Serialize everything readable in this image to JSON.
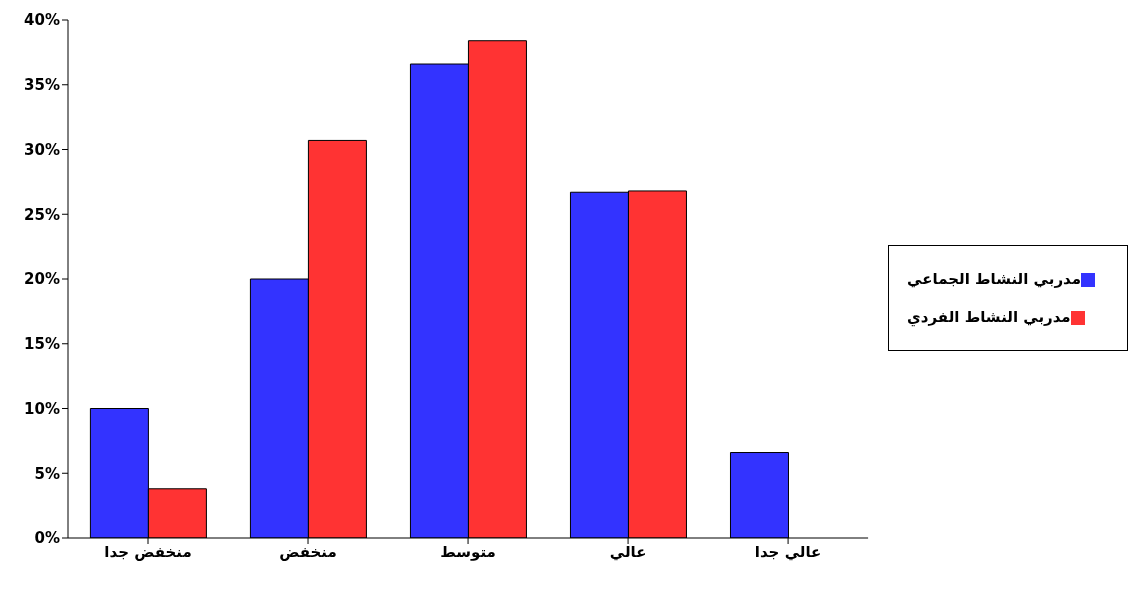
{
  "chart_data": {
    "type": "bar",
    "categories": [
      "منخفض جدا",
      "منخفض",
      "متوسط",
      "عالي",
      "عالي جدا"
    ],
    "series": [
      {
        "name": "مدربي النشاط الجماعي",
        "color": "#3333ff",
        "values": [
          10.0,
          20.0,
          36.6,
          26.7,
          6.6
        ]
      },
      {
        "name": "مدربي النشاط الفردي",
        "color": "#ff3333",
        "values": [
          3.8,
          30.7,
          38.4,
          26.8,
          0
        ]
      }
    ],
    "ylim": [
      0,
      40
    ],
    "yticks": [
      {
        "value": 0,
        "label": "0%"
      },
      {
        "value": 5,
        "label": "5%"
      },
      {
        "value": 10,
        "label": "10%"
      },
      {
        "value": 15,
        "label": "15%"
      },
      {
        "value": 20,
        "label": "20%"
      },
      {
        "value": 25,
        "label": "25%"
      },
      {
        "value": 30,
        "label": "30%"
      },
      {
        "value": 35,
        "label": "35%"
      },
      {
        "value": 40,
        "label": "40%"
      }
    ],
    "grid": false,
    "legend": "right"
  }
}
